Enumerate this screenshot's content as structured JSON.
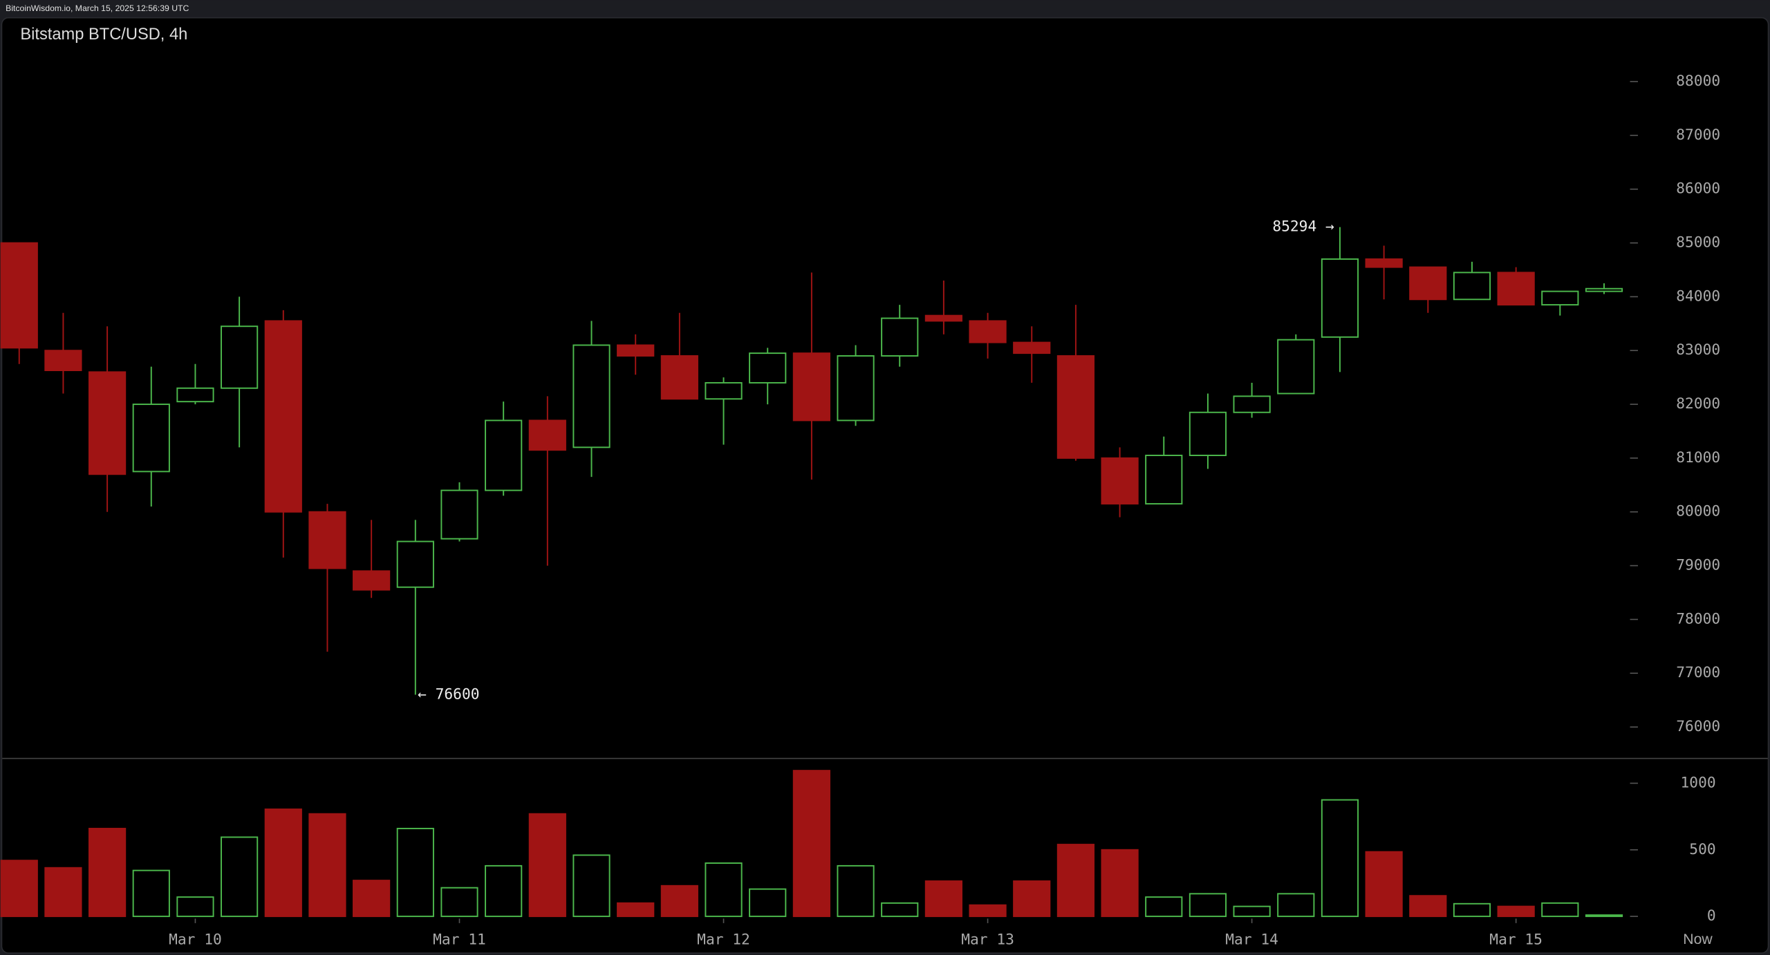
{
  "chart_data": {
    "type": "candlestick",
    "header": "BitcoinWisdom.io, March 15, 2025 12:56:39 UTC",
    "title": "Bitstamp BTC/USD, 4h",
    "categories": [
      null,
      null,
      null,
      null,
      "Mar 10",
      null,
      null,
      null,
      null,
      null,
      "Mar 11",
      null,
      null,
      null,
      null,
      null,
      "Mar 12",
      null,
      null,
      null,
      null,
      null,
      "Mar 13",
      null,
      null,
      null,
      null,
      null,
      "Mar 14",
      null,
      null,
      null,
      null,
      null,
      "Mar 15",
      null,
      null
    ],
    "now_label": "Now",
    "open": [
      85000,
      83000,
      82600,
      80750,
      82050,
      82300,
      83550,
      80000,
      78900,
      78600,
      79500,
      80400,
      81700,
      81200,
      83100,
      82900,
      82100,
      82400,
      82950,
      81700,
      82900,
      83650,
      83550,
      83150,
      82900,
      81000,
      80150,
      81050,
      81850,
      82200,
      83250,
      84700,
      84550,
      83950,
      84450,
      83850,
      84100
    ],
    "high": [
      85000,
      83700,
      83450,
      82700,
      82750,
      84000,
      83750,
      80150,
      79850,
      79850,
      80550,
      82050,
      82150,
      83550,
      83300,
      83700,
      82500,
      83050,
      84450,
      83100,
      83850,
      84300,
      83700,
      83450,
      83850,
      81200,
      81400,
      82200,
      82400,
      83300,
      85294,
      84950,
      84550,
      84650,
      84550,
      84100,
      84250
    ],
    "low": [
      82750,
      82200,
      80000,
      80100,
      82000,
      81200,
      79150,
      77400,
      78400,
      76600,
      79450,
      80300,
      79000,
      80650,
      82550,
      82100,
      81250,
      82000,
      80600,
      81600,
      82700,
      83300,
      82850,
      82400,
      80950,
      79900,
      80150,
      80800,
      81750,
      82200,
      82600,
      83950,
      83700,
      83950,
      83850,
      83650,
      84050
    ],
    "close": [
      83050,
      82630,
      80700,
      82000,
      82300,
      83450,
      80000,
      78950,
      78550,
      79450,
      80400,
      81700,
      81150,
      83100,
      82900,
      82100,
      82400,
      82950,
      81700,
      82900,
      83600,
      83550,
      83150,
      82950,
      81000,
      80150,
      81050,
      81850,
      82150,
      83200,
      84700,
      84550,
      83950,
      84450,
      83850,
      84100,
      84150
    ],
    "volume": [
      420,
      365,
      660,
      345,
      145,
      595,
      805,
      770,
      270,
      660,
      215,
      380,
      770,
      460,
      100,
      230,
      400,
      205,
      1095,
      380,
      100,
      265,
      85,
      265,
      540,
      500,
      145,
      170,
      75,
      170,
      875,
      485,
      155,
      95,
      75,
      100,
      10
    ],
    "up_color": "#4cb84c",
    "down_color": "#a01414",
    "ylim": [
      75500,
      89000
    ],
    "yticks": [
      76000,
      77000,
      78000,
      79000,
      80000,
      81000,
      82000,
      83000,
      84000,
      85000,
      86000,
      87000,
      88000
    ],
    "volume_ylim": [
      0,
      1100
    ],
    "volume_yticks": [
      0,
      500,
      1000
    ],
    "annotations": {
      "high": "85294 →",
      "low": "← 76600"
    }
  }
}
